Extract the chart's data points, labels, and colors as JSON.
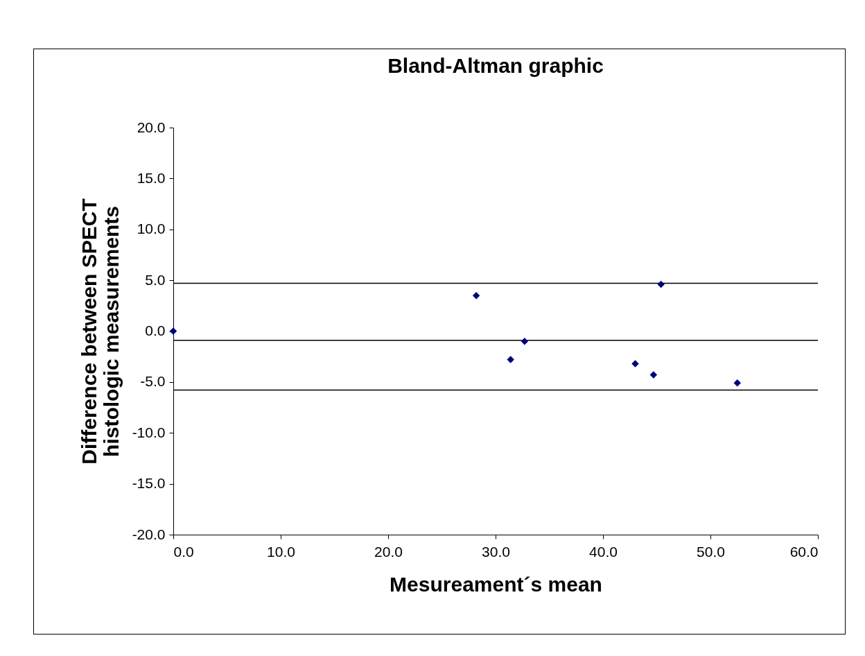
{
  "chart_data": {
    "type": "scatter",
    "title": "Bland-Altman graphic",
    "xlabel": "Mesureament´s mean",
    "ylabel": "Difference between SPECT\nhistologic measurements",
    "x": [
      0,
      28.2,
      31.4,
      32.7,
      43.0,
      44.7,
      45.4,
      52.5
    ],
    "values": [
      0,
      3.5,
      -2.8,
      -1.0,
      -3.2,
      -4.3,
      4.6,
      -5.1
    ],
    "color": "#000080",
    "marker": "diamond",
    "grid": false,
    "xlim": [
      0,
      60
    ],
    "ylim": [
      -20,
      20
    ],
    "xticks": [
      {
        "value": 0,
        "label": "0.0"
      },
      {
        "value": 10,
        "label": "10.0"
      },
      {
        "value": 20,
        "label": "20.0"
      },
      {
        "value": 30,
        "label": "30.0"
      },
      {
        "value": 40,
        "label": "40.0"
      },
      {
        "value": 50,
        "label": "50.0"
      },
      {
        "value": 60,
        "label": "60.0"
      }
    ],
    "yticks": [
      {
        "value": -20,
        "label": "-20.0"
      },
      {
        "value": -15,
        "label": "-15.0"
      },
      {
        "value": -10,
        "label": "-10.0"
      },
      {
        "value": -5,
        "label": "-5.0"
      },
      {
        "value": 0,
        "label": "0.0"
      },
      {
        "value": 5,
        "label": "5.0"
      },
      {
        "value": 10,
        "label": "10.0"
      },
      {
        "value": 15,
        "label": "15.0"
      },
      {
        "value": 20,
        "label": "20.0"
      }
    ],
    "ref_lines": [
      {
        "axis": "y",
        "value": 4.7,
        "label": null,
        "color": "#000000"
      },
      {
        "axis": "y",
        "value": -0.9,
        "label": null,
        "color": "#000000"
      },
      {
        "axis": "y",
        "value": -5.8,
        "label": null,
        "color": "#000000"
      }
    ]
  }
}
